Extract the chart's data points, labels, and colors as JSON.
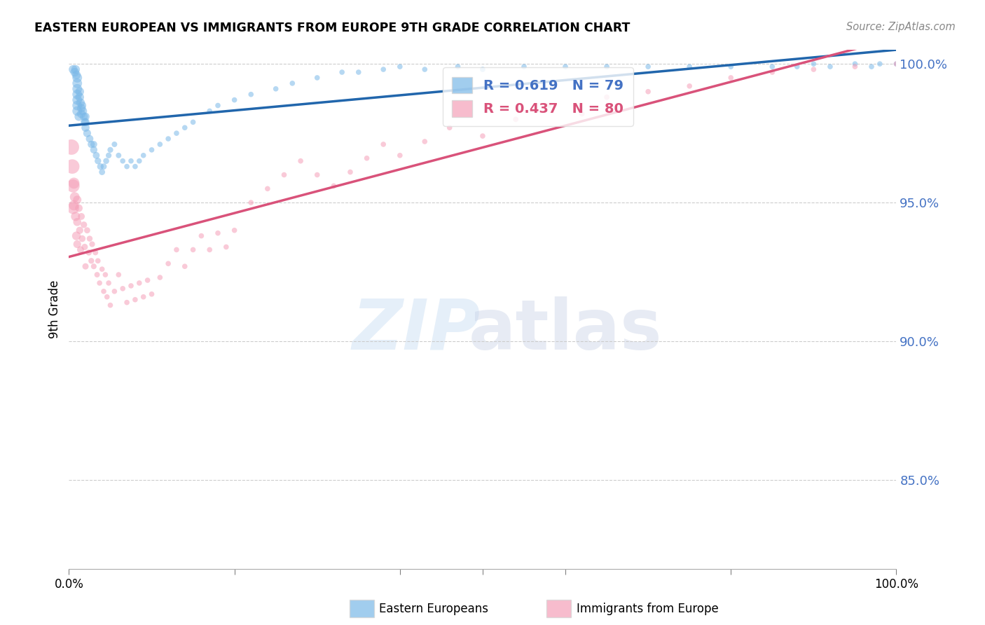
{
  "title": "EASTERN EUROPEAN VS IMMIGRANTS FROM EUROPE 9TH GRADE CORRELATION CHART",
  "source": "Source: ZipAtlas.com",
  "ylabel": "9th Grade",
  "xlim": [
    0.0,
    1.0
  ],
  "ylim": [
    0.818,
    1.005
  ],
  "blue_R": 0.619,
  "blue_N": 79,
  "pink_R": 0.437,
  "pink_N": 80,
  "blue_color": "#7ab8e8",
  "pink_color": "#f5a0b8",
  "blue_line_color": "#2166ac",
  "pink_line_color": "#d9527a",
  "y_ticks": [
    0.85,
    0.9,
    0.95,
    1.0
  ],
  "y_tick_labels": [
    "85.0%",
    "90.0%",
    "95.0%",
    "100.0%"
  ],
  "blue_scatter_x": [
    0.005,
    0.007,
    0.008,
    0.009,
    0.01,
    0.01,
    0.01,
    0.01,
    0.01,
    0.01,
    0.01,
    0.012,
    0.013,
    0.013,
    0.014,
    0.015,
    0.015,
    0.016,
    0.017,
    0.018,
    0.019,
    0.02,
    0.02,
    0.02,
    0.022,
    0.025,
    0.027,
    0.03,
    0.03,
    0.033,
    0.035,
    0.038,
    0.04,
    0.042,
    0.045,
    0.048,
    0.05,
    0.055,
    0.06,
    0.065,
    0.07,
    0.075,
    0.08,
    0.085,
    0.09,
    0.1,
    0.11,
    0.12,
    0.13,
    0.14,
    0.15,
    0.17,
    0.18,
    0.2,
    0.22,
    0.25,
    0.27,
    0.3,
    0.33,
    0.35,
    0.38,
    0.4,
    0.43,
    0.47,
    0.5,
    0.55,
    0.6,
    0.65,
    0.7,
    0.75,
    0.8,
    0.85,
    0.88,
    0.9,
    0.92,
    0.95,
    0.97,
    0.98,
    1.0
  ],
  "blue_scatter_y": [
    0.998,
    0.997,
    0.998,
    0.996,
    0.995,
    0.993,
    0.991,
    0.989,
    0.987,
    0.985,
    0.983,
    0.981,
    0.99,
    0.988,
    0.986,
    0.984,
    0.982,
    0.985,
    0.983,
    0.981,
    0.979,
    0.977,
    0.979,
    0.981,
    0.975,
    0.973,
    0.971,
    0.969,
    0.971,
    0.967,
    0.965,
    0.963,
    0.961,
    0.963,
    0.965,
    0.967,
    0.969,
    0.971,
    0.967,
    0.965,
    0.963,
    0.965,
    0.963,
    0.965,
    0.967,
    0.969,
    0.971,
    0.973,
    0.975,
    0.977,
    0.979,
    0.983,
    0.985,
    0.987,
    0.989,
    0.991,
    0.993,
    0.995,
    0.997,
    0.997,
    0.998,
    0.999,
    0.998,
    0.999,
    0.998,
    0.999,
    0.999,
    0.999,
    0.999,
    0.999,
    0.999,
    0.999,
    0.999,
    1.0,
    0.999,
    1.0,
    0.999,
    1.0,
    1.0
  ],
  "blue_scatter_s": [
    80,
    80,
    80,
    80,
    100,
    100,
    100,
    100,
    100,
    100,
    100,
    80,
    80,
    80,
    80,
    80,
    80,
    70,
    70,
    70,
    70,
    70,
    70,
    70,
    65,
    60,
    55,
    55,
    50,
    50,
    45,
    45,
    40,
    40,
    38,
    35,
    35,
    33,
    32,
    30,
    30,
    30,
    30,
    30,
    30,
    30,
    30,
    30,
    30,
    30,
    30,
    30,
    30,
    30,
    30,
    30,
    30,
    30,
    30,
    30,
    30,
    30,
    30,
    30,
    30,
    30,
    30,
    30,
    30,
    30,
    30,
    30,
    30,
    30,
    30,
    30,
    30,
    30,
    30
  ],
  "pink_scatter_x": [
    0.003,
    0.004,
    0.005,
    0.005,
    0.006,
    0.006,
    0.007,
    0.008,
    0.009,
    0.01,
    0.01,
    0.01,
    0.012,
    0.013,
    0.014,
    0.015,
    0.016,
    0.018,
    0.019,
    0.02,
    0.022,
    0.024,
    0.025,
    0.027,
    0.028,
    0.03,
    0.032,
    0.034,
    0.035,
    0.037,
    0.04,
    0.042,
    0.044,
    0.046,
    0.048,
    0.05,
    0.055,
    0.06,
    0.065,
    0.07,
    0.075,
    0.08,
    0.085,
    0.09,
    0.095,
    0.1,
    0.11,
    0.12,
    0.13,
    0.14,
    0.15,
    0.16,
    0.17,
    0.18,
    0.19,
    0.2,
    0.22,
    0.24,
    0.26,
    0.28,
    0.3,
    0.32,
    0.34,
    0.36,
    0.38,
    0.4,
    0.43,
    0.46,
    0.5,
    0.54,
    0.58,
    0.62,
    0.65,
    0.7,
    0.75,
    0.8,
    0.85,
    0.9,
    0.95,
    1.0
  ],
  "pink_scatter_y": [
    0.97,
    0.963,
    0.956,
    0.948,
    0.957,
    0.949,
    0.952,
    0.945,
    0.938,
    0.951,
    0.943,
    0.935,
    0.948,
    0.94,
    0.933,
    0.945,
    0.937,
    0.942,
    0.934,
    0.927,
    0.94,
    0.932,
    0.937,
    0.929,
    0.935,
    0.927,
    0.932,
    0.924,
    0.929,
    0.921,
    0.926,
    0.918,
    0.924,
    0.916,
    0.921,
    0.913,
    0.918,
    0.924,
    0.919,
    0.914,
    0.92,
    0.915,
    0.921,
    0.916,
    0.922,
    0.917,
    0.923,
    0.928,
    0.933,
    0.927,
    0.933,
    0.938,
    0.933,
    0.939,
    0.934,
    0.94,
    0.95,
    0.955,
    0.96,
    0.965,
    0.96,
    0.956,
    0.961,
    0.966,
    0.971,
    0.967,
    0.972,
    0.977,
    0.974,
    0.98,
    0.985,
    0.982,
    0.988,
    0.99,
    0.992,
    0.995,
    0.997,
    0.998,
    0.999,
    1.0
  ],
  "pink_scatter_s": [
    250,
    220,
    180,
    150,
    130,
    110,
    100,
    90,
    80,
    75,
    70,
    65,
    60,
    55,
    52,
    50,
    48,
    45,
    43,
    42,
    40,
    38,
    37,
    36,
    35,
    34,
    33,
    32,
    31,
    30,
    30,
    30,
    30,
    30,
    30,
    30,
    30,
    30,
    30,
    30,
    30,
    30,
    30,
    30,
    30,
    30,
    30,
    30,
    30,
    30,
    30,
    30,
    30,
    30,
    30,
    30,
    30,
    30,
    30,
    30,
    30,
    30,
    30,
    30,
    30,
    30,
    30,
    30,
    30,
    30,
    30,
    30,
    30,
    30,
    30,
    30,
    30,
    30,
    30,
    30
  ]
}
